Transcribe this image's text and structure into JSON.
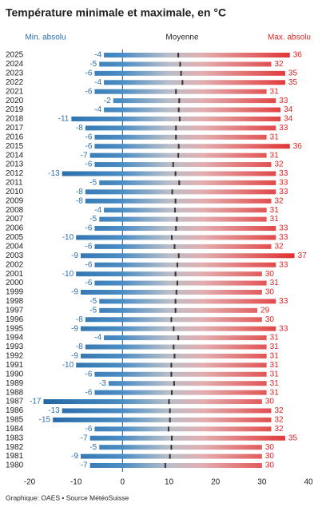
{
  "chart_data": {
    "type": "range_bar",
    "title": "Température minimale et maximale, en °C",
    "source": "Graphique: OAES • Source MétéoSuisse",
    "categories": [
      "2025",
      "2024",
      "2023",
      "2022",
      "2021",
      "2020",
      "2019",
      "2018",
      "2017",
      "2016",
      "2015",
      "2014",
      "2013",
      "2012",
      "2011",
      "2010",
      "2009",
      "2008",
      "2007",
      "2006",
      "2005",
      "2004",
      "2003",
      "2002",
      "2001",
      "2000",
      "1999",
      "1998",
      "1997",
      "1996",
      "1995",
      "1994",
      "1993",
      "1992",
      "1991",
      "1990",
      "1989",
      "1988",
      "1987",
      "1986",
      "1985",
      "1984",
      "1983",
      "1982",
      "1981",
      "1980"
    ],
    "series": [
      {
        "name": "Min. absolu",
        "color": "#2a6fb0",
        "values": [
          -4,
          -5,
          -6,
          -4,
          -6,
          -2,
          -4,
          -11,
          -8,
          -6,
          -6,
          -7,
          -6,
          -13,
          -5,
          -8,
          -8,
          -4,
          -5,
          -6,
          -10,
          -6,
          -9,
          -6,
          -10,
          -6,
          -9,
          -5,
          -5,
          -8,
          -9,
          -4,
          -8,
          -9,
          -10,
          -6,
          -3,
          -6,
          -17,
          -13,
          -15,
          -6,
          -7,
          -5,
          -9,
          -7
        ]
      },
      {
        "name": "Moyenne",
        "color": "#333333",
        "values": [
          12,
          12.4,
          12.6,
          12.9,
          11.5,
          12.2,
          12.1,
          12.3,
          11.5,
          11.5,
          12.1,
          12,
          10.9,
          11.4,
          12.2,
          10.7,
          11.4,
          11.3,
          11.7,
          11.5,
          10.6,
          11.2,
          12.1,
          11.8,
          11.4,
          11.8,
          11.6,
          11.4,
          11.4,
          10.5,
          11,
          12,
          11,
          11.2,
          10.5,
          10.5,
          11.1,
          10.6,
          10,
          10.2,
          10.2,
          9.9,
          10.6,
          10.5,
          10.2,
          9.2
        ]
      },
      {
        "name": "Max. absolu",
        "color": "#e02323",
        "values": [
          36,
          32,
          35,
          35,
          31,
          33,
          34,
          34,
          33,
          31,
          36,
          31,
          32,
          33,
          33,
          33,
          32,
          31,
          31,
          33,
          33,
          32,
          37,
          33,
          30,
          31,
          30,
          33,
          29,
          30,
          33,
          31,
          31,
          31,
          31,
          31,
          31,
          31,
          30,
          32,
          32,
          32,
          35,
          30,
          30,
          30
        ]
      }
    ],
    "xlim": [
      -20,
      40
    ],
    "xticks": [
      -20,
      -10,
      0,
      10,
      20,
      30,
      40
    ]
  }
}
